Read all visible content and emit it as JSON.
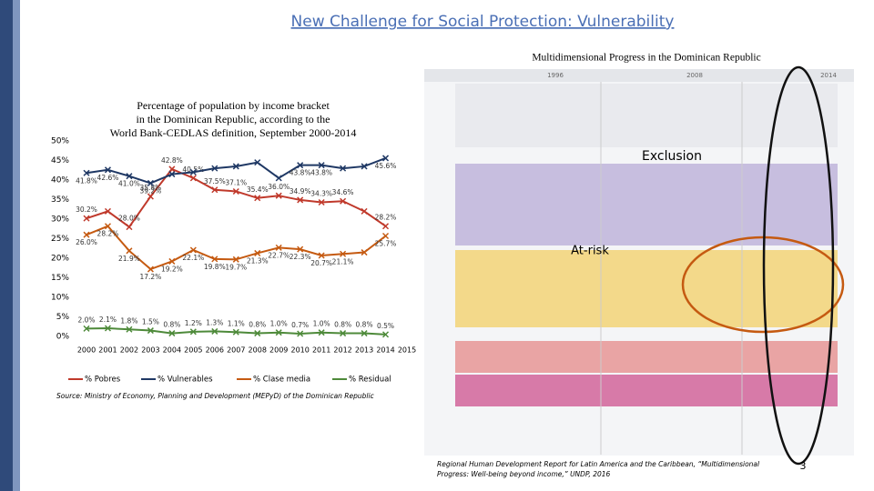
{
  "slide_title": "New Challenge for Social Protection: Vulnerability",
  "right_panel": {
    "title": "Multidimensional Progress in the Dominican Republic",
    "years": [
      "1996",
      "2008",
      "2014"
    ],
    "annotations": [
      "Exclusion",
      "At-risk"
    ]
  },
  "source": "Source: Ministry of Economy, Planning and Development (MEPyD) of the Dominican Republic",
  "footnote": "Regional Human Development Report for Latin America and the Caribbean, “Multidimensional Progress: Well-being beyond income,” UNDP, 2016",
  "page_number": "3",
  "chart_data": {
    "type": "line",
    "title": "Percentage of population by income bracket in the Dominican Republic, according to the World Bank-CEDLAS definition, September 2000-2014",
    "x": [
      2000,
      2001,
      2002,
      2003,
      2004,
      2005,
      2006,
      2007,
      2008,
      2009,
      2010,
      2011,
      2012,
      2013,
      2014
    ],
    "xlim": [
      2000,
      2015
    ],
    "xticks": [
      2000,
      2001,
      2002,
      2003,
      2004,
      2005,
      2006,
      2007,
      2008,
      2009,
      2010,
      2011,
      2012,
      2013,
      2014,
      2015
    ],
    "ylim": [
      0,
      50
    ],
    "yticks": [
      {
        "value": 0,
        "label": "0%"
      },
      {
        "value": 5,
        "label": "5%"
      },
      {
        "value": 10,
        "label": "10%"
      },
      {
        "value": 15,
        "label": "15%"
      },
      {
        "value": 20,
        "label": "20%"
      },
      {
        "value": 25,
        "label": "25%"
      },
      {
        "value": 30,
        "label": "30%"
      },
      {
        "value": 35,
        "label": "35%"
      },
      {
        "value": 40,
        "label": "40%"
      },
      {
        "value": 45,
        "label": "45%"
      },
      {
        "value": 50,
        "label": "50%"
      }
    ],
    "legend": "bottom",
    "series": [
      {
        "name": "% Pobres",
        "color": "#c0392b",
        "values": [
          30.2,
          32.0,
          28.0,
          35.8,
          42.8,
          40.5,
          37.5,
          37.1,
          35.4,
          36.0,
          34.9,
          34.3,
          34.6,
          32.0,
          28.2
        ],
        "value_labels": [
          "30.2%",
          null,
          "28.0%",
          "35.8%",
          "42.8%",
          "40.5%",
          "37.5%",
          "37.1%",
          "35.4%",
          "36.0%",
          "34.9%",
          "34.3%",
          "34.6%",
          null,
          "28.2%"
        ]
      },
      {
        "name": "% Vulnerables",
        "color": "#1f3864",
        "values": [
          41.8,
          42.6,
          41.0,
          39.2,
          41.5,
          42.0,
          43.0,
          43.5,
          44.5,
          40.5,
          43.8,
          43.8,
          43.0,
          43.5,
          45.6
        ],
        "value_labels": [
          "41.8%",
          "42.6%",
          "41.0%",
          "39.2%",
          null,
          null,
          null,
          null,
          null,
          null,
          "43.8%",
          "43.8%",
          null,
          null,
          "45.6%"
        ]
      },
      {
        "name": "% Clase media",
        "color": "#c55a11",
        "values": [
          26.0,
          28.2,
          21.9,
          17.2,
          19.2,
          22.1,
          19.8,
          19.7,
          21.3,
          22.7,
          22.3,
          20.7,
          21.1,
          21.5,
          25.7
        ],
        "value_labels": [
          "26.0%",
          "28.2%",
          "21.9%",
          "17.2%",
          "19.2%",
          "22.1%",
          "19.8%",
          "19.7%",
          "21.3%",
          "22.7%",
          "22.3%",
          "20.7%",
          "21.1%",
          null,
          "25.7%"
        ]
      },
      {
        "name": "% Residual",
        "color": "#4e8a3a",
        "values": [
          2.0,
          2.1,
          1.8,
          1.5,
          0.8,
          1.2,
          1.3,
          1.1,
          0.8,
          1.0,
          0.7,
          1.0,
          0.8,
          0.8,
          0.5
        ],
        "value_labels": [
          "2.0%",
          "2.1%",
          "1.8%",
          "1.5%",
          "0.8%",
          "1.2%",
          "1.3%",
          "1.1%",
          "0.8%",
          "1.0%",
          "0.7%",
          "1.0%",
          "0.8%",
          "0.8%",
          "0.5%"
        ]
      }
    ]
  }
}
